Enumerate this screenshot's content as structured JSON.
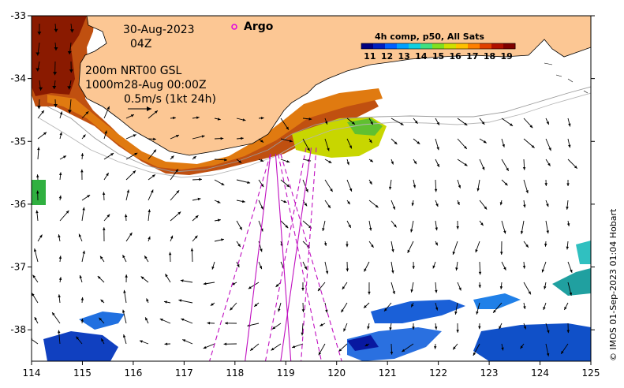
{
  "chart_data": {
    "type": "map",
    "title": "",
    "xlabel": "",
    "ylabel": "",
    "xlim": [
      114,
      125
    ],
    "ylim": [
      -38.5,
      -33
    ],
    "x_ticks": [
      "114",
      "115",
      "116",
      "117",
      "118",
      "119",
      "120",
      "121",
      "122",
      "123",
      "124",
      "125"
    ],
    "y_ticks": [
      "-33",
      "-34",
      "-35",
      "-36",
      "-37",
      "-38"
    ],
    "annotations": {
      "date": "30-Aug-2023",
      "time": "04Z",
      "depth_line_1": "200m  NRT00 GSL",
      "depth_line_2": "1000m28-Aug 00:00Z",
      "scale_label": "0.5m/s (1kt 24h)"
    },
    "argo": {
      "marker": "o",
      "label": "Argo",
      "color": "#e000e0"
    },
    "colorbar": {
      "title": "4h comp, p50, All Sats",
      "tick_labels": [
        "11",
        "12",
        "13",
        "14",
        "15",
        "16",
        "17",
        "18",
        "19"
      ],
      "min": 10.5,
      "max": 19.5,
      "colors": [
        "#00007f",
        "#0020c0",
        "#0060ff",
        "#00a0ff",
        "#10d0e0",
        "#40e080",
        "#80e020",
        "#d0e000",
        "#ffc000",
        "#ff8000",
        "#e04000",
        "#b01000",
        "#7f0000"
      ]
    },
    "satellite_tracks": [
      {
        "style": "dashed",
        "points": [
          [
            118.7,
            -35.2
          ],
          [
            117.5,
            -38.5
          ]
        ]
      },
      {
        "style": "solid",
        "points": [
          [
            118.7,
            -35.2
          ],
          [
            118.2,
            -38.5
          ]
        ]
      },
      {
        "style": "solid",
        "points": [
          [
            118.8,
            -35.2
          ],
          [
            119.1,
            -38.5
          ]
        ]
      },
      {
        "style": "dashed",
        "points": [
          [
            118.85,
            -35.2
          ],
          [
            119.7,
            -38.5
          ]
        ]
      },
      {
        "style": "dashed",
        "points": [
          [
            118.9,
            -35.2
          ],
          [
            120.1,
            -38.5
          ]
        ]
      },
      {
        "style": "dashed",
        "points": [
          [
            119.4,
            -35.1
          ],
          [
            118.6,
            -38.5
          ]
        ]
      },
      {
        "style": "solid",
        "points": [
          [
            119.5,
            -35.1
          ],
          [
            118.9,
            -38.5
          ]
        ]
      },
      {
        "style": "dashed",
        "points": [
          [
            119.6,
            -35.1
          ],
          [
            119.3,
            -38.5
          ]
        ]
      }
    ],
    "credit": "© IMOS 01-Sep-2023 01:04 Hobart"
  }
}
